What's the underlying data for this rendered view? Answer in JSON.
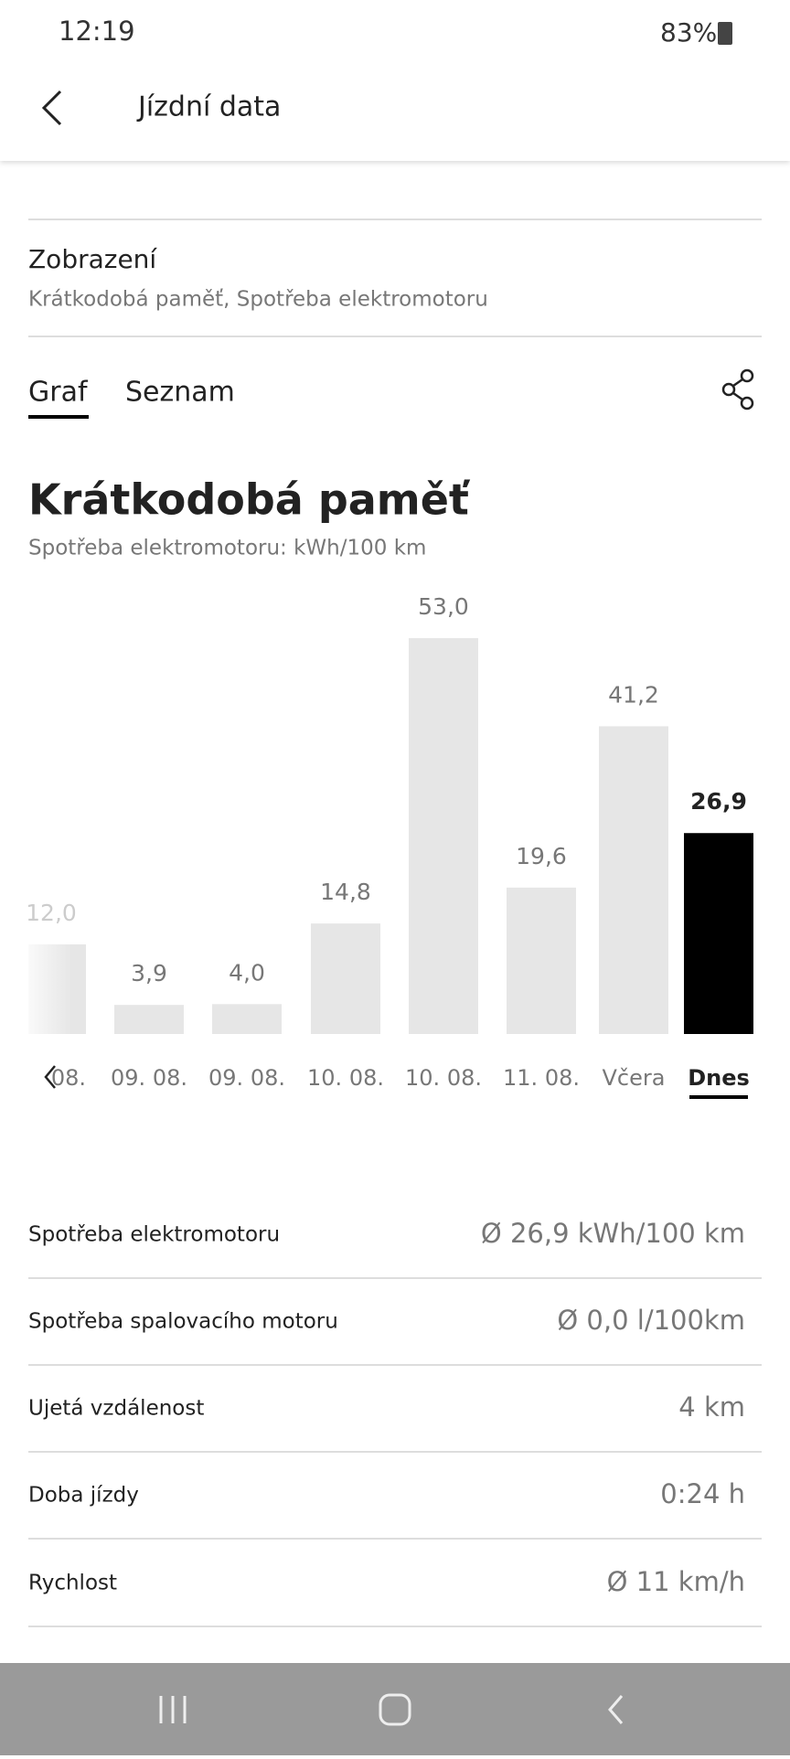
{
  "status_bar": {
    "time": "12:19",
    "battery": "83%"
  },
  "app_bar": {
    "title": "Jízdní data"
  },
  "view": {
    "label": "Zobrazení",
    "value": "Krátkodobá paměť, Spotřeba elektromotoru"
  },
  "tabs": [
    "Graf",
    "Seznam"
  ],
  "chart_data": {
    "type": "bar",
    "title": "Krátkodobá paměť",
    "subtitle": "Spotřeba elektromotoru: kWh/100 km",
    "categories": [
      "08.",
      "09. 08.",
      "09. 08.",
      "10. 08.",
      "10. 08.",
      "11. 08.",
      "Včera",
      "Dnes"
    ],
    "values": [
      12.0,
      3.9,
      4.0,
      14.8,
      53.0,
      19.6,
      41.2,
      26.9
    ],
    "value_labels": [
      "12,0",
      "3,9",
      "4,0",
      "14,8",
      "53,0",
      "19,6",
      "41,2",
      "26,9"
    ],
    "color": "#e6e6e6",
    "highlight_color": "#000000"
  },
  "stats": {
    "rows": [
      [
        "Spotřeba elektromotoru",
        "Ø 26,9 kWh/100 km"
      ],
      [
        "Spotřeba spalovacího motoru",
        "Ø 0,0 l/100km"
      ],
      [
        "Ujetá vzdálenost",
        "4 km"
      ],
      [
        "Doba jízdy",
        "0:24 h"
      ],
      [
        "Rychlost",
        "Ø 11 km/h"
      ]
    ]
  }
}
